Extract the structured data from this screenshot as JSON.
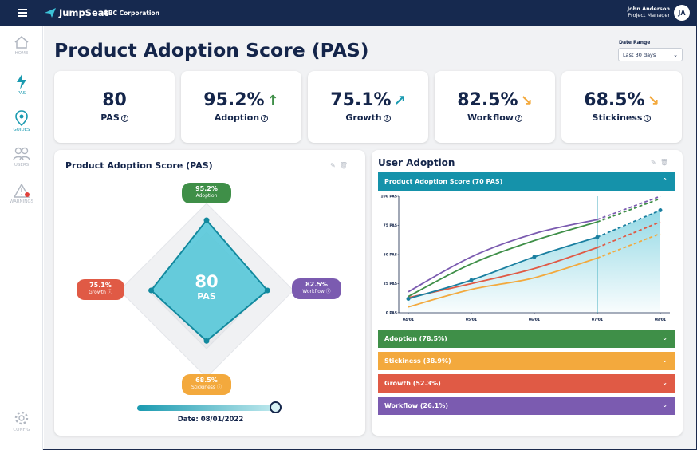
{
  "app": {
    "brand": "JumpSeat",
    "corporation": "ABC Corporation",
    "user_name": "John Anderson",
    "user_role": "Project Manager",
    "user_initials": "JA"
  },
  "nav": [
    {
      "label": "HOME",
      "icon": "home-icon",
      "active": false
    },
    {
      "label": "PAS",
      "icon": "bolt-icon",
      "active": true
    },
    {
      "label": "GUIDES",
      "icon": "map-pin-icon",
      "active": true
    },
    {
      "label": "USERS",
      "icon": "users-icon",
      "active": false
    },
    {
      "label": "WARNINGS",
      "icon": "warning-icon",
      "active": false
    },
    {
      "label": "CONFIG",
      "icon": "gear-icon",
      "active": false
    }
  ],
  "page": {
    "title": "Product Adoption Score (PAS)",
    "date_range_label": "Date Range",
    "date_range_value": "Last 30 days"
  },
  "kpis": [
    {
      "value": "80",
      "label": "PAS",
      "trend": "",
      "color": "#14254a"
    },
    {
      "value": "95.2%",
      "label": "Adoption",
      "trend": "up",
      "color": "#3f8f48"
    },
    {
      "value": "75.1%",
      "label": "Growth",
      "trend": "up-right",
      "color": "#1a9ab0"
    },
    {
      "value": "82.5%",
      "label": "Workflow",
      "trend": "down-right",
      "color": "#f3a93d"
    },
    {
      "value": "68.5%",
      "label": "Stickiness",
      "trend": "down-right",
      "color": "#f3a93d"
    }
  ],
  "radar": {
    "title": "Product Adoption Score (PAS)",
    "center_value": "80",
    "center_label": "PAS",
    "points": [
      {
        "value": "95.2%",
        "label": "Adoption",
        "color": "#3f8f48",
        "level": 0.952
      },
      {
        "value": "82.5%",
        "label": "Workflow",
        "color": "#7b5bb0",
        "level": 0.825
      },
      {
        "value": "68.5%",
        "label": "Stickiness",
        "color": "#f3a93d",
        "level": 0.685
      },
      {
        "value": "75.1%",
        "label": "Growth",
        "color": "#e05a45",
        "level": 0.751
      }
    ],
    "slider_level": 1.0,
    "date_text": "Date: 08/01/2022"
  },
  "adoption_panel": {
    "title": "User Adoption",
    "open_section": "Product Adoption Score (70 PAS)",
    "sections": [
      {
        "label": "Adoption (78.5%)",
        "color": "#3f8f48"
      },
      {
        "label": "Stickiness (38.9%)",
        "color": "#f3a93d"
      },
      {
        "label": "Growth (52.3%)",
        "color": "#e05a45"
      },
      {
        "label": "Workflow (26.1%)",
        "color": "#7b5bb0"
      }
    ]
  },
  "chart_data": {
    "type": "line",
    "x": [
      "04/01",
      "05/01",
      "06/01",
      "07/01",
      "08/01"
    ],
    "yticks": [
      "0 PAS",
      "25 PAS",
      "50 PAS",
      "75 PAS",
      "100 PAS"
    ],
    "ylim": [
      0,
      100
    ],
    "series": [
      {
        "color": "#1a7fa0",
        "values": [
          12,
          28,
          48,
          65,
          88
        ]
      },
      {
        "color": "#3f8f48",
        "values": [
          14,
          42,
          62,
          78,
          98
        ]
      },
      {
        "color": "#7b5bb0",
        "values": [
          18,
          48,
          68,
          80,
          100
        ]
      },
      {
        "color": "#e05a45",
        "values": [
          13,
          25,
          38,
          56,
          78
        ]
      },
      {
        "color": "#f3a93d",
        "values": [
          5,
          20,
          30,
          47,
          68
        ]
      }
    ],
    "forecast_from": "07/01"
  }
}
